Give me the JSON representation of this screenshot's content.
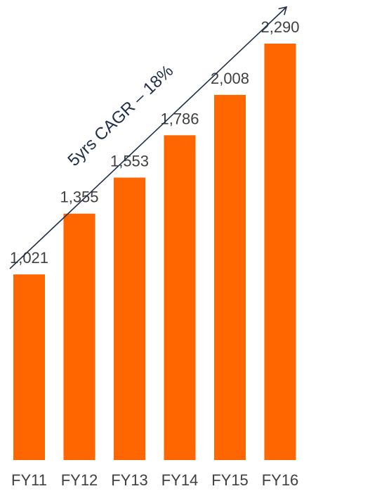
{
  "chart_data": {
    "type": "bar",
    "categories": [
      "FY11",
      "FY12",
      "FY13",
      "FY14",
      "FY15",
      "FY16"
    ],
    "values": [
      1021,
      1355,
      1553,
      1786,
      2008,
      2290
    ],
    "value_labels": [
      "1,021",
      "1,355",
      "1,553",
      "1,786",
      "2,008",
      "2,290"
    ],
    "ylim": [
      0,
      2290
    ],
    "grid": false,
    "legend": "none",
    "annotation": "5yrs CAGR – 18%",
    "colors": {
      "bar": "#ff6600",
      "arrow": "#1f2f4a",
      "text": "#404040"
    }
  }
}
